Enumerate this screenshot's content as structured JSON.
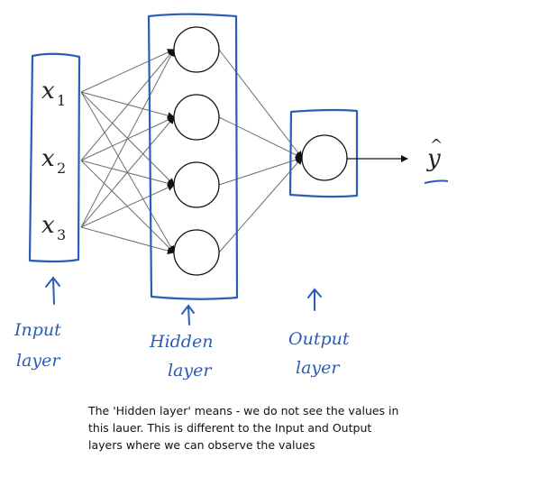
{
  "inputs": [
    {
      "symbol": "x",
      "subscript": "1"
    },
    {
      "symbol": "x",
      "subscript": "2"
    },
    {
      "symbol": "x",
      "subscript": "3"
    }
  ],
  "hidden_unit_count": 4,
  "output": {
    "symbol": "y",
    "hat": "^"
  },
  "labels": {
    "input": [
      "Input",
      "layer"
    ],
    "hidden": [
      "Hidden",
      "layer"
    ],
    "output": [
      "Output",
      "layer"
    ]
  },
  "caption": [
    "The 'Hidden layer' means - we do not see the values in",
    "this lauer. This is different to the Input and Output",
    "layers where we can observe the values"
  ],
  "colors": {
    "pen": "#2a5db5",
    "edge": "#6e6e6e",
    "node": "#111111",
    "text": "#111111"
  }
}
